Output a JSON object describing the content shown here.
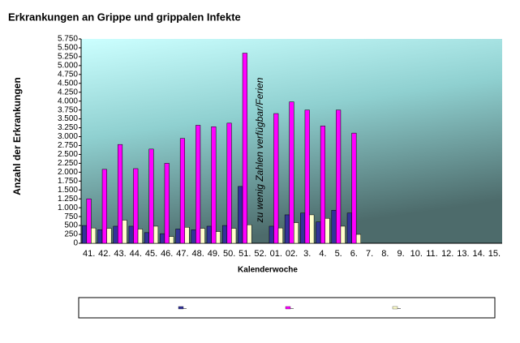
{
  "chart_data": {
    "type": "bar",
    "title": "Erkrankungen an Grippe und grippalen Infekte",
    "y_label": "Anzahl der Erkrankungen",
    "x_label": "Kalenderwoche",
    "annotation": "zu wenig Zahlen verfügbar/Ferien",
    "categories": [
      "41.",
      "42.",
      "43.",
      "44.",
      "45.",
      "46.",
      "47.",
      "48.",
      "49.",
      "50.",
      "51.",
      "52.",
      "01.",
      "02.",
      "3.",
      "4.",
      "5.",
      "6.",
      "7.",
      "8.",
      "9.",
      "10.",
      "11.",
      "12.",
      "13.",
      "14.",
      "15."
    ],
    "series": [
      {
        "color": "#333399",
        "values": [
          500,
          380,
          480,
          480,
          300,
          270,
          400,
          380,
          480,
          500,
          1600,
          null,
          480,
          800,
          850,
          600,
          930,
          850,
          null,
          null,
          null,
          null,
          null,
          null,
          null,
          null,
          null
        ]
      },
      {
        "color": "#ff00ff",
        "values": [
          1250,
          2080,
          2780,
          2100,
          2650,
          2250,
          2950,
          3320,
          3280,
          3380,
          5350,
          null,
          3650,
          3980,
          3750,
          3300,
          3750,
          3100,
          null,
          null,
          null,
          null,
          null,
          null,
          null,
          null,
          null
        ]
      },
      {
        "color": "#ffffcc",
        "values": [
          430,
          420,
          650,
          400,
          480,
          190,
          450,
          420,
          330,
          420,
          520,
          null,
          430,
          580,
          800,
          700,
          480,
          250,
          null,
          null,
          null,
          null,
          null,
          null,
          null,
          null,
          null
        ]
      }
    ],
    "ylim": [
      0,
      5750
    ],
    "yticks": [
      0,
      250,
      500,
      750,
      {
        "value": 1000,
        "label": "1.000"
      },
      {
        "value": 1250,
        "label": "1.250"
      },
      {
        "value": 1500,
        "label": "1.500"
      },
      {
        "value": 1750,
        "label": "1.750"
      },
      {
        "value": 2000,
        "label": "2.000"
      },
      {
        "value": 2250,
        "label": "2.250"
      },
      {
        "value": 2500,
        "label": "2.500"
      },
      {
        "value": 2750,
        "label": "2.750"
      },
      {
        "value": 3000,
        "label": "3.000"
      },
      {
        "value": 3250,
        "label": "3.250"
      },
      {
        "value": 3500,
        "label": "3.500"
      },
      {
        "value": 3750,
        "label": "3.750"
      },
      {
        "value": 4000,
        "label": "4.000"
      },
      {
        "value": 4250,
        "label": "4.250"
      },
      {
        "value": 4500,
        "label": "4.500"
      },
      {
        "value": 4750,
        "label": "4.750"
      },
      {
        "value": 5000,
        "label": "5.000"
      },
      {
        "value": 5250,
        "label": "5.250"
      },
      {
        "value": 5500,
        "label": "5.500"
      },
      {
        "value": 5750,
        "label": "5.750"
      }
    ],
    "grid": false
  }
}
